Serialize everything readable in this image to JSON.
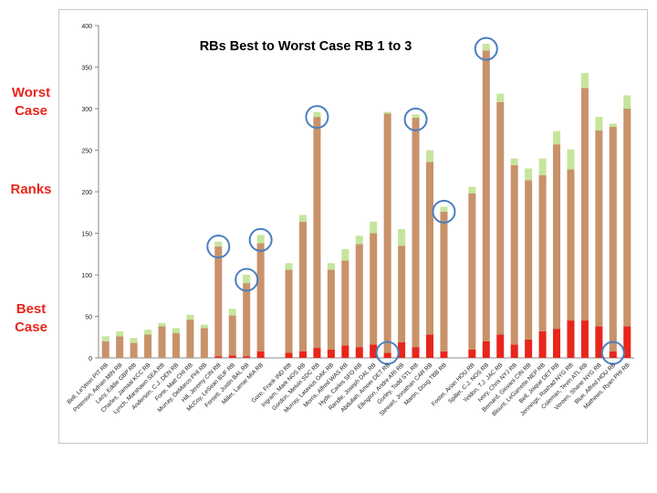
{
  "side_labels": {
    "worst": "Worst Case",
    "ranks": "Ranks",
    "best": "Best Case"
  },
  "chart_data": {
    "type": "bar",
    "stacked": true,
    "title": "RBs Best to Worst Case RB 1 to 3",
    "xlabel": "",
    "ylabel": "",
    "ylim": [
      0,
      400
    ],
    "yticks": [
      0,
      50,
      100,
      150,
      200,
      250,
      300,
      350,
      400
    ],
    "grid": false,
    "legend": "none",
    "colors": {
      "best": "#e8261b",
      "mid": "#c8926a",
      "worst": "#c6e59c"
    },
    "categories": [
      "Bell, Le'Veon PIT RB",
      "Peterson, Adrian MIN RB",
      "Lacy, Eddie GBP RB",
      "Charles, Jamaal KCC RB",
      "Lynch, Marshawn SEA RB",
      "Anderson, C.J. DEN RB",
      "Forte, Matt CHI RB",
      "Murray, DeMarco PHI RB",
      "Hill, Jeremy CIN RB",
      "McCoy, LeSean BUF RB",
      "Forsett, Justin BAL RB",
      "Miller, Lamar MIA RB",
      "",
      "Gore, Frank IND RB",
      "Ingram, Mark NOS RB",
      "Gordon, Melvin SDC RB",
      "Murray, Latavius OAK RB",
      "Morris, Alfred WAS RB",
      "Hyde, Carlos SFO RB",
      "Randle, Joseph DAL RB",
      "Abdullah, Ameer DET RB",
      "Ellington, Andre ARI RB",
      "Gurley, Todd STL RB",
      "Stewart, Jonathan CAR RB",
      "Martin, Doug TBB RB",
      "",
      "Foster, Arian HOU RB",
      "Spiller, C.J. NOS RB",
      "Yeldon, T.J. JAC RB",
      "Ivory, Chris NYJ RB",
      "Bernard, Giovani CIN RB",
      "Blount, LeGarrette NEP RB",
      "Bell, Joique DET RB",
      "Jennings, Rashad NYG RB",
      "Coleman, Tevin ATL RB",
      "Vereen, Shane NYG RB",
      "Blue, Alfred HOU RB",
      "Mathews, Ryan PHI RB"
    ],
    "series": [
      {
        "key": "best",
        "values": [
          0,
          0,
          0,
          0,
          0,
          0,
          0,
          0,
          2,
          3,
          2,
          8,
          0,
          6,
          8,
          12,
          10,
          15,
          13,
          16,
          6,
          19,
          13,
          28,
          8,
          0,
          10,
          20,
          28,
          16,
          22,
          32,
          35,
          45,
          45,
          38,
          8,
          38
        ]
      },
      {
        "key": "mid",
        "values": [
          20,
          26,
          18,
          28,
          38,
          30,
          46,
          36,
          132,
          48,
          88,
          130,
          0,
          100,
          156,
          278,
          96,
          102,
          124,
          134,
          288,
          116,
          276,
          208,
          168,
          0,
          188,
          350,
          280,
          216,
          192,
          188,
          222,
          182,
          280,
          236,
          270,
          262
        ]
      },
      {
        "key": "worst",
        "values": [
          6,
          6,
          6,
          6,
          4,
          6,
          6,
          4,
          6,
          8,
          10,
          10,
          0,
          8,
          8,
          6,
          8,
          14,
          10,
          14,
          2,
          20,
          4,
          14,
          6,
          0,
          8,
          8,
          10,
          8,
          14,
          20,
          16,
          24,
          18,
          16,
          4,
          16
        ]
      }
    ],
    "highlighted": [
      "Hill, Jeremy CIN RB",
      "Forsett, Justin BAL RB",
      "Miller, Lamar MIA RB",
      "Gordon, Melvin SDC RB",
      "Abdullah, Ameer DET RB",
      "Gurley, Todd STL RB",
      "Martin, Doug TBB RB",
      "Spiller, C.J. NOS RB",
      "Blue, Alfred HOU RB"
    ]
  }
}
